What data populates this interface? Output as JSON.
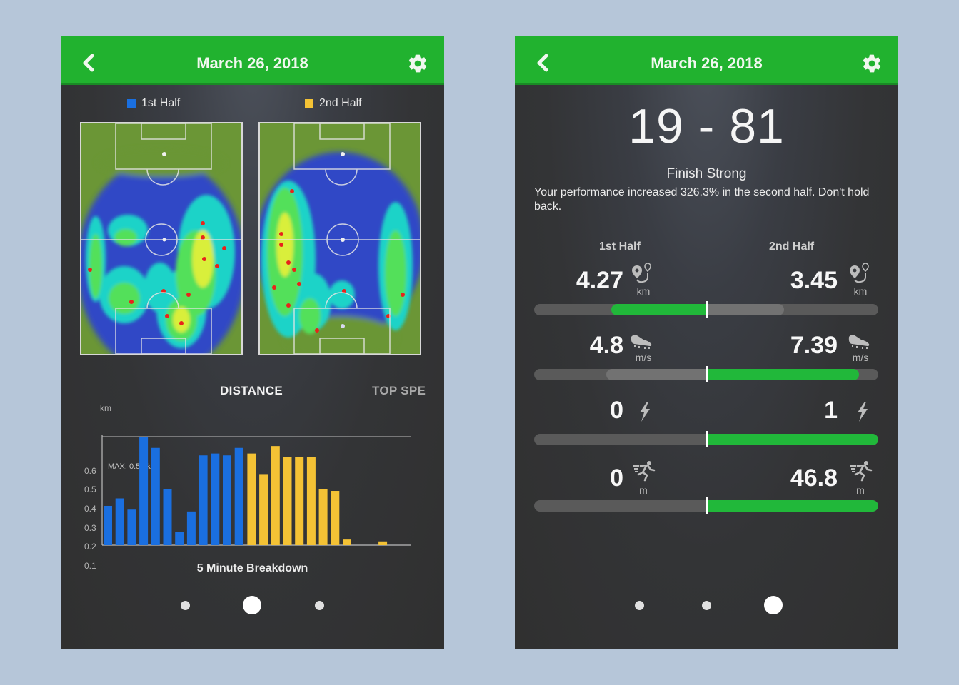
{
  "colors": {
    "brand_green": "#21b22f",
    "first_half": "#1a6fe0",
    "second_half": "#f4c235",
    "bar_track": "#5a5a5a",
    "bar_loser": "#7a7a7a",
    "background": "#b6c6d9"
  },
  "left_screen": {
    "header": {
      "title": "March 26, 2018",
      "back_icon": "chevron-left-icon",
      "settings_icon": "gear-icon"
    },
    "legend": [
      {
        "label": "1st Half",
        "color": "#1a6fe0"
      },
      {
        "label": "2nd Half",
        "color": "#f4c235"
      }
    ],
    "heatmaps": [
      {
        "label": "1st Half heatmap"
      },
      {
        "label": "2nd Half heatmap"
      }
    ],
    "tabs": [
      {
        "label": "DISTANCE",
        "active": true
      },
      {
        "label": "TOP SPE",
        "active": false
      }
    ],
    "chart_caption": "5 Minute Breakdown",
    "pagination": {
      "count": 3,
      "active_index": 1
    }
  },
  "chart_data": {
    "type": "bar",
    "title": "5 Minute Breakdown",
    "xlabel": "",
    "ylabel": "km",
    "ylim": [
      0,
      0.6
    ],
    "yticks": [
      "0.1",
      "0.2",
      "0.3",
      "0.4",
      "0.5",
      "0.6"
    ],
    "grid": false,
    "annotation": "MAX: 0.58 km",
    "max_value": 0.58,
    "legend_position": "top",
    "series": [
      {
        "name": "1st Half",
        "color": "#1a6fe0",
        "values": [
          0.21,
          0.25,
          0.19,
          0.58,
          0.52,
          0.3,
          0.07,
          0.18,
          0.48,
          0.49,
          0.48,
          0.52
        ]
      },
      {
        "name": "2nd Half",
        "color": "#f4c235",
        "values": [
          0.49,
          0.38,
          0.53,
          0.47,
          0.47,
          0.47,
          0.3,
          0.29,
          0.03,
          0.0,
          0.0,
          0.02
        ]
      }
    ]
  },
  "right_screen": {
    "header": {
      "title": "March 26, 2018",
      "back_icon": "chevron-left-icon",
      "settings_icon": "gear-icon"
    },
    "score": "19 - 81",
    "headline": "Finish Strong",
    "description": "Your performance increased 326.3% in the second half. Don't hold back.",
    "columns": {
      "first": "1st Half",
      "second": "2nd Half"
    },
    "stats": [
      {
        "name": "distance",
        "icon": "route-pin-icon",
        "unit": "km",
        "first": "4.27",
        "second": "3.45",
        "first_pct": 0.55,
        "second_pct": 0.45,
        "winner": "first"
      },
      {
        "name": "top-speed",
        "icon": "cleat-icon",
        "unit": "m/s",
        "first": "4.8",
        "second": "7.39",
        "first_pct": 0.58,
        "second_pct": 0.89,
        "winner": "second"
      },
      {
        "name": "sprints",
        "icon": "lightning-icon",
        "unit": "",
        "first": "0",
        "second": "1",
        "first_pct": 0.0,
        "second_pct": 1.0,
        "winner": "second"
      },
      {
        "name": "sprint-distance",
        "icon": "sprinter-icon",
        "unit": "m",
        "first": "0",
        "second": "46.8",
        "first_pct": 0.0,
        "second_pct": 1.0,
        "winner": "second"
      }
    ],
    "pagination": {
      "count": 3,
      "active_index": 2
    }
  }
}
